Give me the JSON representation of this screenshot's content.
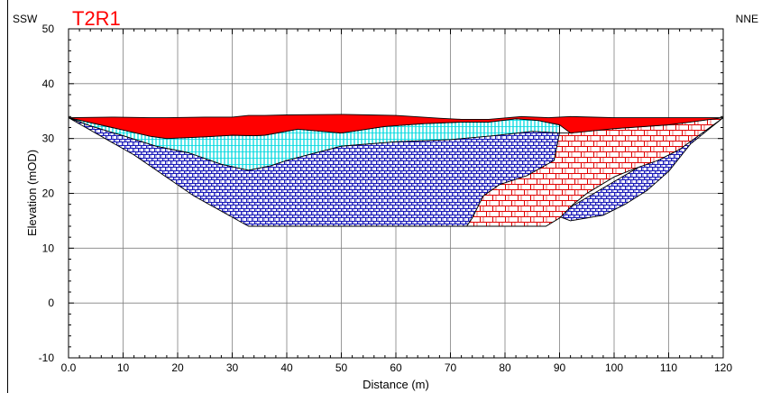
{
  "chart_data": {
    "type": "area",
    "title": "T2R1",
    "title_color": "#ff0000",
    "xlabel": "Distance (m)",
    "ylabel": "Elevation (mOD)",
    "left_direction": "SSW",
    "right_direction": "NNE",
    "xlim": [
      0,
      120
    ],
    "ylim": [
      -10,
      50
    ],
    "x_ticks": [
      0,
      10,
      20,
      30,
      40,
      50,
      60,
      70,
      80,
      90,
      100,
      110,
      120
    ],
    "x_tick_labels": [
      "0.0",
      "10",
      "20",
      "30",
      "40",
      "50",
      "60",
      "70",
      "80",
      "90",
      "100",
      "110",
      "120"
    ],
    "y_ticks": [
      -10,
      0,
      10,
      20,
      30,
      40,
      50
    ],
    "y_tick_labels": [
      "-10",
      "0",
      "10",
      "20",
      "30",
      "40",
      "50"
    ],
    "grid": true,
    "series": [
      {
        "color": "#ff0000",
        "pattern": "solid",
        "x": [
          0,
          8,
          15,
          18,
          25,
          30,
          33,
          36,
          40,
          50,
          55,
          60,
          68,
          72,
          77,
          83,
          88,
          92,
          100,
          110,
          120,
          110,
          100,
          92,
          90,
          86,
          82,
          77,
          72,
          65,
          58,
          50,
          42,
          36,
          34,
          30,
          25,
          18,
          15,
          8,
          0
        ],
        "y": [
          33.8,
          33.9,
          33.8,
          33.8,
          33.9,
          33.9,
          34.2,
          34.2,
          34.3,
          34.4,
          34.3,
          34.2,
          33.7,
          33.5,
          33.5,
          34.0,
          33.8,
          34.0,
          33.8,
          33.8,
          33.8,
          32.5,
          31.8,
          31.0,
          32.5,
          33.3,
          33.6,
          33.0,
          33.0,
          32.7,
          32.2,
          31.0,
          31.7,
          30.6,
          30.5,
          30.6,
          30.3,
          30.0,
          30.4,
          32.0,
          33.8
        ]
      },
      {
        "color": "#00d8e0",
        "pattern": "fine-vertical-hatch",
        "x": [
          0,
          8,
          15,
          18,
          25,
          30,
          34,
          36,
          42,
          50,
          58,
          65,
          72,
          77,
          82,
          86,
          90,
          90,
          85,
          78,
          70,
          60,
          50,
          45,
          40,
          37,
          33,
          28,
          22,
          16,
          10,
          4,
          0
        ],
        "y": [
          33.8,
          32.0,
          30.4,
          30.0,
          30.3,
          30.6,
          30.5,
          30.6,
          31.7,
          31.0,
          32.2,
          32.7,
          33.0,
          33.0,
          33.6,
          33.3,
          32.5,
          31.0,
          31.3,
          30.5,
          29.8,
          29.4,
          28.6,
          27.3,
          26.0,
          25.0,
          24.2,
          25.3,
          27.4,
          28.6,
          30.5,
          32.3,
          33.8
        ]
      },
      {
        "color": "#2020c0",
        "pattern": "brick-hatch",
        "x": [
          0,
          4,
          10,
          16,
          22,
          28,
          33,
          37,
          40,
          45,
          50,
          60,
          70,
          78,
          85,
          90,
          89,
          84,
          79,
          76,
          74,
          73,
          33,
          23,
          12,
          0
        ],
        "y": [
          33.8,
          32.3,
          30.5,
          28.6,
          27.4,
          25.3,
          24.2,
          25.0,
          26.0,
          27.3,
          28.6,
          29.4,
          29.8,
          30.5,
          31.3,
          31.0,
          26.0,
          23.2,
          21.6,
          19.5,
          15.5,
          14.0,
          14.0,
          19.5,
          27.0,
          33.8
        ]
      },
      {
        "color": "#2020c0",
        "pattern": "brick-hatch",
        "x": [
          86,
          87.5,
          90,
          92.5,
          95,
          100,
          104,
          108,
          112,
          120,
          113,
          108,
          104,
          98,
          94,
          89,
          87,
          88,
          92,
          98,
          102,
          106,
          110,
          114,
          120
        ],
        "y": [
          14.0,
          14.0,
          15.5,
          18.0,
          20.0,
          23.0,
          24.6,
          26.0,
          28.0,
          33.8,
          31.0,
          29.5,
          28.2,
          27.0,
          25.0,
          20.0,
          18.0,
          16.5,
          15.0,
          16.0,
          18.0,
          20.5,
          24.0,
          29.0,
          33.8
        ]
      },
      {
        "color": "#e00000",
        "pattern": "large-brick-hatch",
        "x": [
          73,
          74,
          76,
          79,
          84,
          89,
          90,
          92,
          100,
          110,
          120,
          112,
          108,
          104,
          100,
          95,
          92.5,
          90,
          87.5,
          86
        ],
        "y": [
          14.0,
          15.5,
          19.5,
          21.6,
          23.2,
          26.0,
          31.0,
          31.0,
          31.8,
          32.5,
          33.8,
          28.0,
          26.0,
          24.6,
          23.0,
          20.0,
          18.0,
          15.5,
          14.0,
          14.0
        ]
      }
    ]
  }
}
